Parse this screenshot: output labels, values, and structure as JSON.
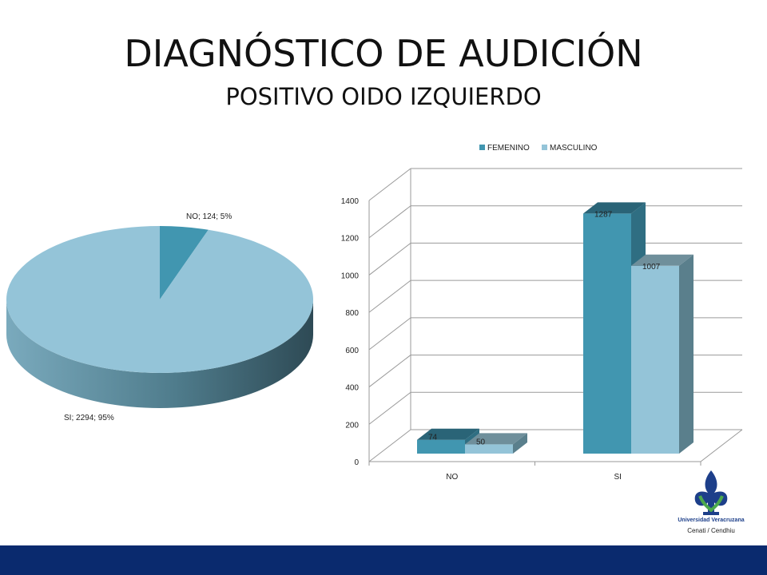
{
  "slide": {
    "title": "DIAGNÓSTICO DE AUDICIÓN",
    "subtitle": "POSITIVO OIDO IZQUIERDO"
  },
  "logo": {
    "name": "Universidad Veracruzana",
    "unit": "Cenati / Cendhiu",
    "icon": "fleur-de-lis-icon"
  },
  "colors": {
    "femenino": "#4196b0",
    "masculino": "#94c4d8",
    "footer": "#0a2a6e"
  },
  "chart_data": [
    {
      "type": "pie",
      "slices": [
        {
          "label": "NO",
          "value": 124,
          "percent": 5,
          "text": "NO; 124; 5%"
        },
        {
          "label": "SI",
          "value": 2294,
          "percent": 95,
          "text": "SI; 2294; 95%"
        }
      ]
    },
    {
      "type": "bar",
      "categories": [
        "NO",
        "SI"
      ],
      "series": [
        {
          "name": "FEMENINO",
          "values": [
            74,
            1287
          ]
        },
        {
          "name": "MASCULINO",
          "values": [
            50,
            1007
          ]
        }
      ],
      "ylim": [
        0,
        1400
      ],
      "yticks": [
        "0",
        "200",
        "400",
        "600",
        "800",
        "1000",
        "1200",
        "1400"
      ],
      "legend": "top",
      "grid": true
    }
  ]
}
